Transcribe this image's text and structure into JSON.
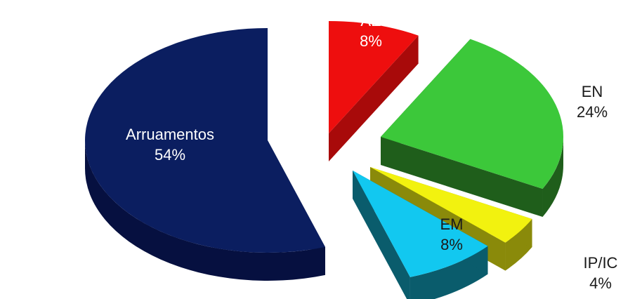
{
  "chart_data": {
    "type": "pie",
    "style": "3d-exploded",
    "categories": [
      "AE",
      "EN",
      "IP/IC",
      "EM",
      "Arruamentos"
    ],
    "values": [
      8,
      24,
      4,
      8,
      54
    ],
    "value_labels": [
      "8%",
      "24%",
      "4%",
      "8%",
      "54%"
    ],
    "colors": [
      "#ee0e0e",
      "#3cc83a",
      "#f2f20f",
      "#12c8f0",
      "#0b1e60"
    ],
    "side_colors": [
      "#a80a0a",
      "#1f5e1b",
      "#8a8a0a",
      "#0a5c6c",
      "#061040"
    ],
    "label_colors": [
      "#ffffff",
      "#1a1a1a",
      "#1a1a1a",
      "#1a1a1a",
      "#ffffff"
    ],
    "legend": "none"
  }
}
